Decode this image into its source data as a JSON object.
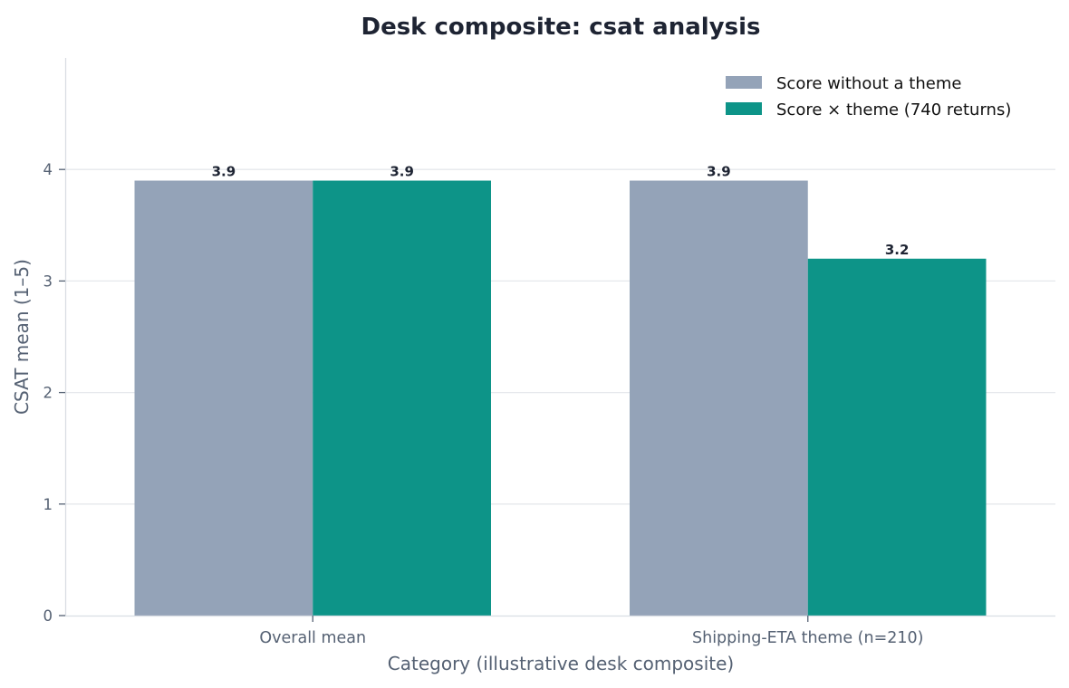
{
  "chart_data": {
    "type": "bar",
    "title": "Desk composite: csat analysis",
    "xlabel": "Category (illustrative desk composite)",
    "ylabel": "CSAT mean (1–5)",
    "categories": [
      "Overall mean",
      "Shipping-ETA theme (n=210)"
    ],
    "series": [
      {
        "name": "Score without a theme",
        "values": [
          3.9,
          3.9
        ],
        "color": "#94a3b8"
      },
      {
        "name": "Score × theme (740 returns)",
        "values": [
          3.9,
          3.2
        ],
        "color": "#0d9488"
      }
    ],
    "ylim": [
      0,
      5
    ],
    "yticks": [
      0,
      1,
      2,
      3,
      4
    ],
    "grid": true,
    "legend_position": "top-right"
  }
}
